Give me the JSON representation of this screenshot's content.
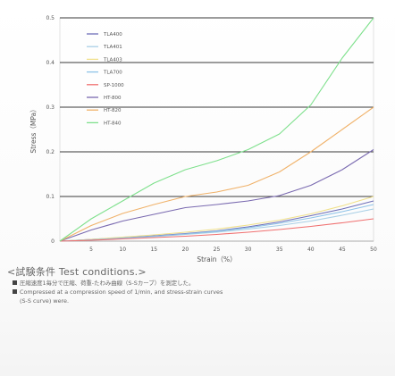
{
  "chart_data": {
    "type": "line",
    "xlabel": "Strain（%）",
    "ylabel": "Stress（MPa）",
    "xlim": [
      0,
      50
    ],
    "ylim": [
      0,
      0.5
    ],
    "x_ticks": [
      5,
      10,
      15,
      20,
      25,
      30,
      35,
      40,
      45,
      50
    ],
    "y_ticks": [
      0,
      0.1,
      0.2,
      0.3,
      0.4,
      0.5
    ],
    "grid": "horizontal",
    "legend_position": "top-left",
    "series": [
      {
        "name": "TLA400",
        "color": "#6f6fb8",
        "x": [
          0,
          5,
          10,
          15,
          20,
          25,
          30,
          35,
          40,
          45,
          50
        ],
        "y": [
          0,
          0.004,
          0.008,
          0.012,
          0.017,
          0.023,
          0.032,
          0.043,
          0.057,
          0.072,
          0.09
        ]
      },
      {
        "name": "TLA401",
        "color": "#a8cfe6",
        "x": [
          0,
          5,
          10,
          15,
          20,
          25,
          30,
          35,
          40,
          45,
          50
        ],
        "y": [
          0,
          0.003,
          0.006,
          0.01,
          0.015,
          0.02,
          0.027,
          0.035,
          0.045,
          0.058,
          0.072
        ]
      },
      {
        "name": "TLA403",
        "color": "#f0e08a",
        "x": [
          0,
          5,
          10,
          15,
          20,
          25,
          30,
          35,
          40,
          45,
          50
        ],
        "y": [
          0,
          0.004,
          0.009,
          0.014,
          0.02,
          0.027,
          0.036,
          0.047,
          0.061,
          0.079,
          0.1
        ]
      },
      {
        "name": "TLA700",
        "color": "#8ec3e8",
        "x": [
          0,
          5,
          10,
          15,
          20,
          25,
          30,
          35,
          40,
          45,
          50
        ],
        "y": [
          0,
          0.003,
          0.007,
          0.011,
          0.016,
          0.022,
          0.03,
          0.04,
          0.052,
          0.066,
          0.082
        ]
      },
      {
        "name": "SP-1000",
        "color": "#f07070",
        "x": [
          0,
          5,
          10,
          15,
          20,
          25,
          30,
          35,
          40,
          45,
          50
        ],
        "y": [
          0,
          0.002,
          0.005,
          0.008,
          0.011,
          0.015,
          0.02,
          0.026,
          0.033,
          0.041,
          0.05
        ]
      },
      {
        "name": "HT-800",
        "color": "#7a6ab0",
        "x": [
          0,
          5,
          10,
          15,
          20,
          25,
          30,
          35,
          40,
          45,
          50
        ],
        "y": [
          0,
          0.025,
          0.045,
          0.06,
          0.075,
          0.082,
          0.09,
          0.102,
          0.125,
          0.16,
          0.205
        ]
      },
      {
        "name": "HT-820",
        "color": "#f0b26a",
        "x": [
          0,
          5,
          10,
          15,
          20,
          25,
          30,
          35,
          40,
          45,
          50
        ],
        "y": [
          0,
          0.035,
          0.062,
          0.082,
          0.1,
          0.11,
          0.125,
          0.155,
          0.2,
          0.25,
          0.3
        ]
      },
      {
        "name": "HT-840",
        "color": "#7ee08c",
        "x": [
          0,
          5,
          10,
          15,
          20,
          25,
          30,
          35,
          40,
          45,
          50
        ],
        "y": [
          0,
          0.05,
          0.09,
          0.13,
          0.16,
          0.18,
          0.205,
          0.24,
          0.305,
          0.41,
          0.5
        ]
      }
    ]
  },
  "conditions": {
    "heading": "<試験条件 Test conditions.>",
    "line_ja": "圧縮速度1毎分で圧縮、荷重-たわみ曲線（S-Sカーブ）を測定した。",
    "line_en_1": "Compressed at a compression speed of 1/min, and stress-strain curves",
    "line_en_2": "(S-S curve) were."
  }
}
